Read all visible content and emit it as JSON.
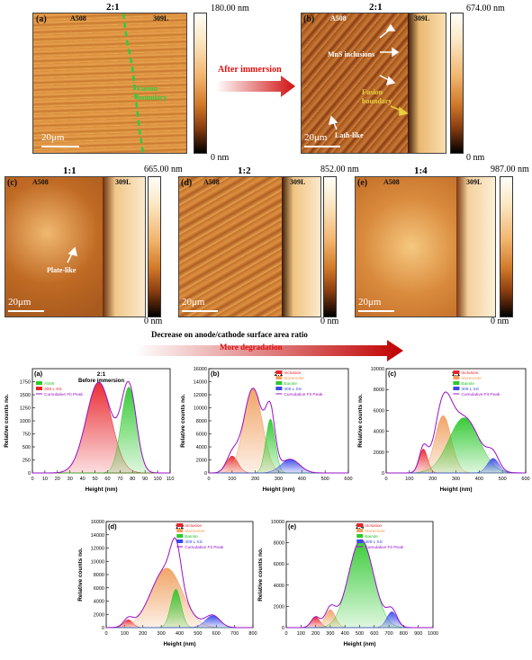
{
  "afm": {
    "a": {
      "letter": "(a)",
      "title": "2:1",
      "left": "A508",
      "right": "309L",
      "scale": "20μm",
      "top": "180.00 nm",
      "bottom": "0 nm",
      "fusion": "Fusion boundary"
    },
    "b": {
      "letter": "(b)",
      "title": "2:1",
      "left": "A508",
      "right": "309L",
      "scale": "20μm",
      "top": "674.00 nm",
      "bottom": "0 nm",
      "mns": "MnS inclusions",
      "fusion": "Fusion boundary",
      "lath": "Lath-like"
    },
    "c": {
      "letter": "(c)",
      "title": "1:1",
      "left": "A508",
      "right": "309L",
      "scale": "20μm",
      "top": "665.00 nm",
      "bottom": "0 nm",
      "plate": "Plate-like"
    },
    "d": {
      "letter": "(d)",
      "title": "1:2",
      "left": "A508",
      "right": "309L",
      "scale": "20μm",
      "top": "852.00 nm",
      "bottom": "0 nm"
    },
    "e": {
      "letter": "(e)",
      "title": "1:4",
      "left": "A508",
      "right": "309L",
      "scale": "20μm",
      "top": "987.00 nm",
      "bottom": "0 nm"
    },
    "after_immersion": "After immersion",
    "decrease_text": "Decrease on anode/cathode surface area ratio",
    "more_degradation": "More degradation"
  },
  "chart_data": [
    {
      "type": "area",
      "letter": "(a)",
      "title": "2:1",
      "subtitle": "Before immersion",
      "xlabel": "Height (nm)",
      "ylabel": "Relative counts no.",
      "xlim": [
        0,
        110
      ],
      "ylim": [
        0,
        2000
      ],
      "xticks": [
        0,
        10,
        20,
        30,
        40,
        50,
        60,
        70,
        80,
        90,
        100,
        110
      ],
      "yticks": [
        0,
        250,
        500,
        750,
        1000,
        1250,
        1500,
        1750
      ],
      "legend": [
        "A508",
        "309 L SS",
        "Cumulative Fit Peak"
      ],
      "series": [
        {
          "name": "309 L SS",
          "color": "#e8242a",
          "peak": {
            "center": 53,
            "height": 1740,
            "sigma": 10
          }
        },
        {
          "name": "A508",
          "color": "#2ec82e",
          "peak": {
            "center": 77,
            "height": 1650,
            "sigma": 6
          }
        }
      ]
    },
    {
      "type": "area",
      "letter": "(b)",
      "title": "2:1",
      "xlabel": "Height (nm)",
      "ylabel": "Relative counts no.",
      "xlim": [
        0,
        600
      ],
      "ylim": [
        0,
        16000
      ],
      "xticks": [
        0,
        100,
        200,
        300,
        400,
        500,
        600
      ],
      "yticks": [
        0,
        2000,
        4000,
        6000,
        8000,
        10000,
        12000,
        14000,
        16000
      ],
      "legend": [
        "Inclusion",
        "Martensite",
        "Bainite",
        "309 L SS",
        "Cumulative Fit Peak"
      ],
      "series": [
        {
          "name": "Inclusion",
          "color": "#e8242a",
          "peak": {
            "center": 100,
            "height": 2600,
            "sigma": 25
          }
        },
        {
          "name": "Martensite",
          "color": "#f0a060",
          "peak": {
            "center": 190,
            "height": 13000,
            "sigma": 40
          }
        },
        {
          "name": "Bainite",
          "color": "#2ec82e",
          "peak": {
            "center": 265,
            "height": 8300,
            "sigma": 20
          }
        },
        {
          "name": "309 L SS",
          "color": "#3a4ae8",
          "peak": {
            "center": 350,
            "height": 2100,
            "sigma": 40
          }
        }
      ]
    },
    {
      "type": "area",
      "letter": "(c)",
      "title": "1:1",
      "xlabel": "Height (nm)",
      "ylabel": "Relative counts no.",
      "xlim": [
        0,
        600
      ],
      "ylim": [
        0,
        10000
      ],
      "xticks": [
        0,
        100,
        200,
        300,
        400,
        500,
        600
      ],
      "yticks": [
        0,
        2000,
        4000,
        6000,
        8000,
        10000
      ],
      "legend": [
        "Inclusion",
        "Martensite",
        "Bainite",
        "309 L SS",
        "Cumulative Fit Peak"
      ],
      "series": [
        {
          "name": "Inclusion",
          "color": "#e8242a",
          "peak": {
            "center": 160,
            "height": 2300,
            "sigma": 18
          }
        },
        {
          "name": "Martensite",
          "color": "#f0a060",
          "peak": {
            "center": 245,
            "height": 5500,
            "sigma": 35
          }
        },
        {
          "name": "Bainite",
          "color": "#2ec82e",
          "peak": {
            "center": 335,
            "height": 5300,
            "sigma": 65
          }
        },
        {
          "name": "309 L SS",
          "color": "#3a4ae8",
          "peak": {
            "center": 460,
            "height": 1400,
            "sigma": 25
          }
        }
      ]
    },
    {
      "type": "area",
      "letter": "(d)",
      "title": "1:2",
      "xlabel": "Height (nm)",
      "ylabel": "Relative counts no.",
      "xlim": [
        0,
        800
      ],
      "ylim": [
        0,
        16000
      ],
      "xticks": [
        0,
        100,
        200,
        300,
        400,
        500,
        600,
        700,
        800
      ],
      "yticks": [
        0,
        2000,
        4000,
        6000,
        8000,
        10000,
        12000,
        14000,
        16000
      ],
      "legend": [
        "Inclusion",
        "Martensite",
        "Bainite",
        "309 L SS",
        "Cumulative Fit Peak"
      ],
      "series": [
        {
          "name": "Inclusion",
          "color": "#e8242a",
          "peak": {
            "center": 120,
            "height": 1200,
            "sigma": 25
          }
        },
        {
          "name": "Martensite",
          "color": "#f0a060",
          "peak": {
            "center": 330,
            "height": 9000,
            "sigma": 85
          }
        },
        {
          "name": "Bainite",
          "color": "#2ec82e",
          "peak": {
            "center": 380,
            "height": 5800,
            "sigma": 28
          }
        },
        {
          "name": "309 L SS",
          "color": "#3a4ae8",
          "peak": {
            "center": 580,
            "height": 1800,
            "sigma": 40
          }
        }
      ]
    },
    {
      "type": "area",
      "letter": "(e)",
      "title": "1:4",
      "xlabel": "Height (nm)",
      "ylabel": "Relative counts no.",
      "xlim": [
        0,
        1000
      ],
      "ylim": [
        0,
        10000
      ],
      "xticks": [
        0,
        100,
        200,
        300,
        400,
        500,
        600,
        700,
        800,
        900,
        1000
      ],
      "yticks": [
        0,
        2000,
        4000,
        6000,
        8000,
        10000
      ],
      "legend": [
        "Inclusion",
        "Martensite",
        "Bainite",
        "309 L SS",
        "Cumulative Fit Peak"
      ],
      "series": [
        {
          "name": "Inclusion",
          "color": "#e8242a",
          "peak": {
            "center": 200,
            "height": 1000,
            "sigma": 30
          }
        },
        {
          "name": "Martensite",
          "color": "#f0a060",
          "peak": {
            "center": 300,
            "height": 1700,
            "sigma": 35
          }
        },
        {
          "name": "Bainite",
          "color": "#2ec82e",
          "peak": {
            "center": 510,
            "height": 8300,
            "sigma": 85
          }
        },
        {
          "name": "309 L SS",
          "color": "#3a4ae8",
          "peak": {
            "center": 720,
            "height": 1500,
            "sigma": 35
          }
        }
      ]
    }
  ]
}
